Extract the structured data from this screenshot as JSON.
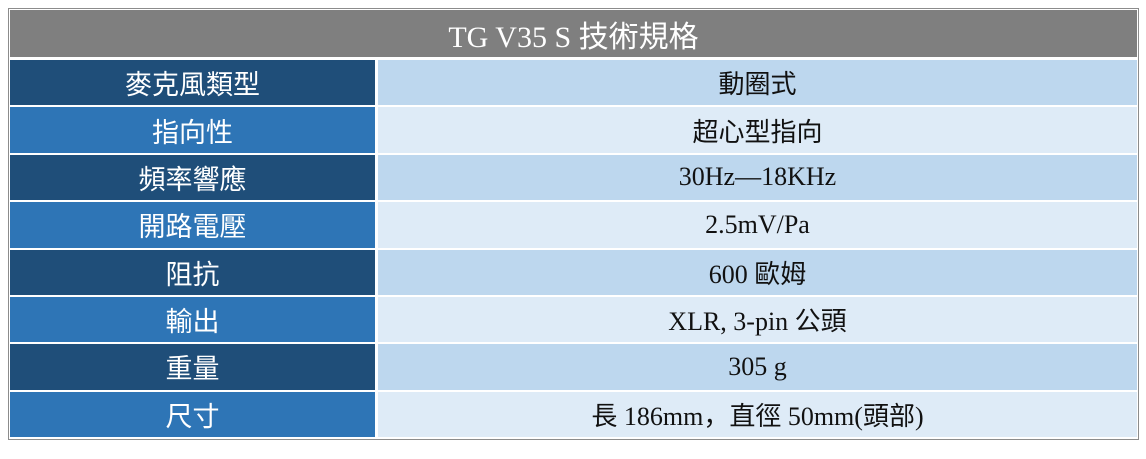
{
  "table": {
    "title": "TG V35 S 技術規格",
    "rows": [
      [
        "麥克風類型",
        "動圈式"
      ],
      [
        "指向性",
        "超心型指向"
      ],
      [
        "頻率響應",
        "30Hz—18KHz"
      ],
      [
        "開路電壓",
        "2.5mV/Pa"
      ],
      [
        "阻抗",
        "600 歐姆"
      ],
      [
        "輸出",
        "XLR, 3-pin 公頭"
      ],
      [
        "重量",
        "305 g"
      ],
      [
        "尺寸",
        "長 186mm，直徑 50mm(頭部)"
      ]
    ]
  }
}
